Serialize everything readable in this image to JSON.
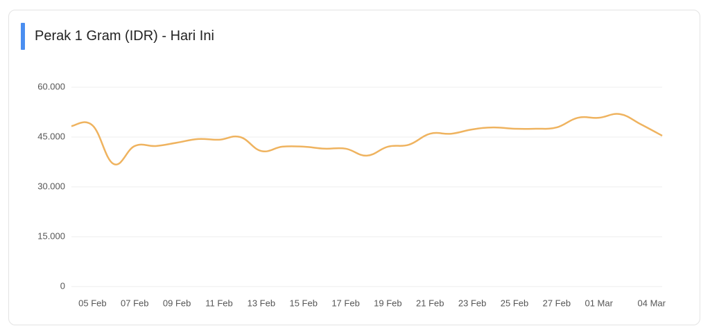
{
  "chart_data": {
    "type": "line",
    "title": "Perak 1 Gram (IDR) - Hari Ini",
    "categories": [
      null,
      "05 Feb",
      null,
      "07 Feb",
      null,
      "09 Feb",
      null,
      "11 Feb",
      null,
      "13 Feb",
      null,
      "15 Feb",
      null,
      "17 Feb",
      null,
      "19 Feb",
      null,
      "21 Feb",
      null,
      "23 Feb",
      null,
      "25 Feb",
      null,
      "27 Feb",
      null,
      "01 Mar",
      null,
      null,
      "04 Mar"
    ],
    "series": [
      {
        "name": "Perak 1 Gram (IDR)",
        "color": "#efb35f",
        "values": [
          48300,
          48500,
          36900,
          42300,
          42300,
          43300,
          44400,
          44200,
          45000,
          40800,
          42100,
          42100,
          41500,
          41500,
          39400,
          42100,
          42700,
          46000,
          46000,
          47300,
          47900,
          47500,
          47500,
          47900,
          50800,
          50800,
          51900,
          48800,
          45400
        ]
      }
    ],
    "ylim": [
      0,
      60000
    ],
    "yticks": [
      0,
      {
        "value": 15000,
        "label": "15.000"
      },
      {
        "value": 30000,
        "label": "30.000"
      },
      {
        "value": 45000,
        "label": "45.000"
      },
      {
        "value": 60000,
        "label": "60.000"
      }
    ],
    "grid": true
  }
}
